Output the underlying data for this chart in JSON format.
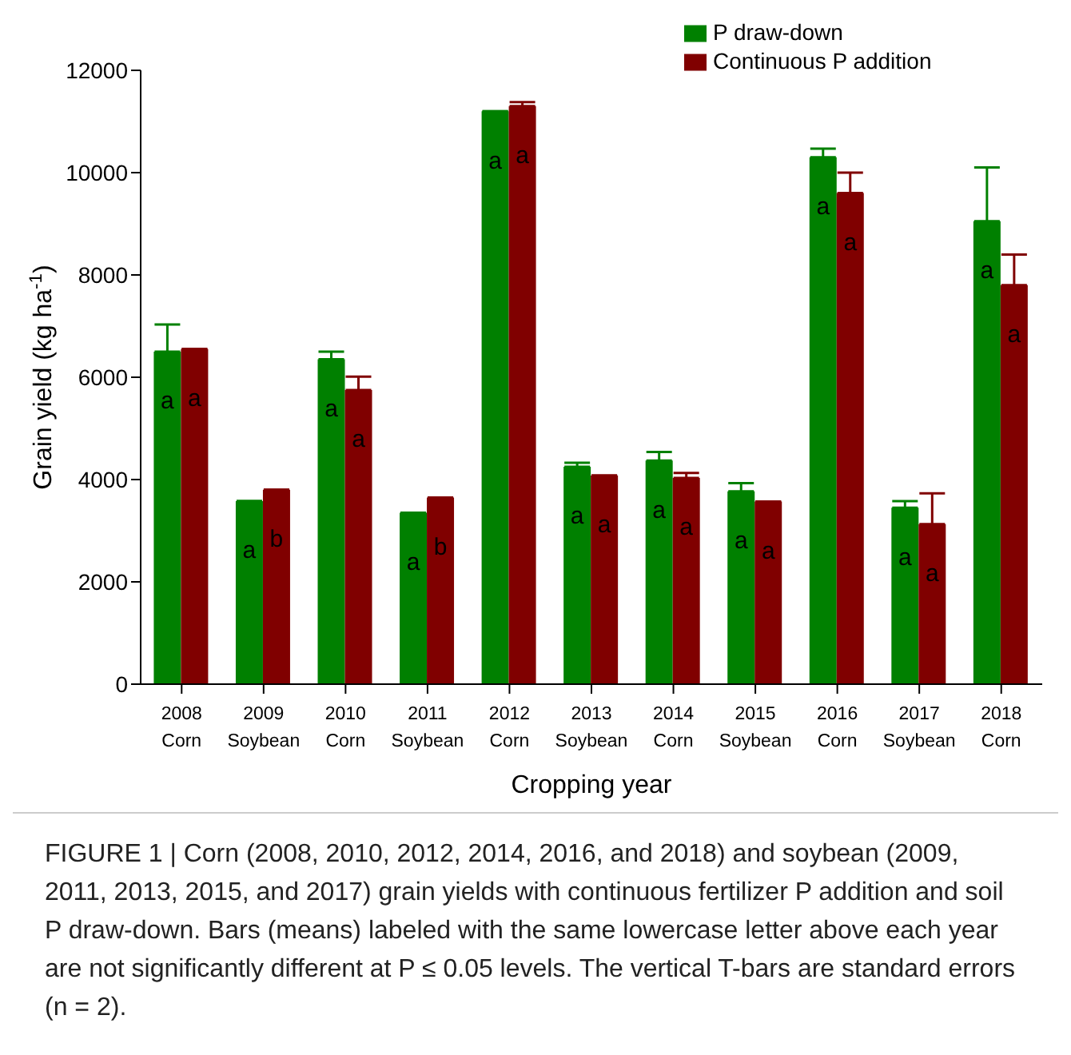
{
  "chart_data": {
    "type": "bar",
    "xlabel": "Cropping year",
    "ylabel": "Grain yield (kg ha$^{-1}$)",
    "categories": [
      "2008\nCorn",
      "2009\nSoybean",
      "2010\nCorn",
      "2011\nSoybean",
      "2012\nCorn",
      "2013\nSoybean",
      "2014\nCorn",
      "2015\nSoybean",
      "2016\nCorn",
      "2017\nSoybean",
      "2018\nCorn"
    ],
    "series": [
      {
        "name": "P draw-down",
        "color": "#008000",
        "values": [
          6500,
          3580,
          6350,
          3350,
          11200,
          4250,
          4370,
          3770,
          10300,
          3450,
          9050
        ],
        "errors": [
          [
            6500,
            7030
          ],
          null,
          [
            6350,
            6500
          ],
          null,
          null,
          [
            4250,
            4330
          ],
          [
            4370,
            4540
          ],
          [
            3770,
            3930
          ],
          [
            10300,
            10470
          ],
          [
            3450,
            3580
          ],
          [
            9050,
            10100
          ]
        ],
        "value_labels": [
          "a",
          "a",
          "a",
          "a",
          "a",
          "a",
          "a",
          "a",
          "a",
          "a",
          "a"
        ]
      },
      {
        "name": "Continuous P addition",
        "color": "#800000",
        "values": [
          6550,
          3800,
          5750,
          3650,
          11300,
          4080,
          4030,
          3570,
          9600,
          3130,
          7800
        ],
        "errors": [
          null,
          null,
          [
            5750,
            6010
          ],
          null,
          [
            11300,
            11380
          ],
          null,
          [
            4030,
            4130
          ],
          null,
          [
            9600,
            10000
          ],
          [
            3130,
            3730
          ],
          [
            7800,
            8400
          ]
        ],
        "value_labels": [
          "a",
          "b",
          "a",
          "b",
          "a",
          "a",
          "a",
          "a",
          "a",
          "a",
          "a"
        ]
      }
    ],
    "ylim": [
      0,
      12000
    ],
    "yticks": [
      0,
      2000,
      4000,
      6000,
      8000,
      10000,
      12000
    ],
    "grid": false,
    "legend": "top right",
    "annotations": [
      "FIGURE 1 | Corn (2008, 2010, 2012, 2014, 2016, and 2018) and soybean (2009, 2011, 2013, 2015, and 2017) grain yields with continuous fertilizer P addition and soil P draw-down. Bars (means) labeled with the same lowercase letter above each year are not significantly different at P ≤ 0.05 levels. The vertical T-bars are standard errors (n = 2)."
    ]
  }
}
